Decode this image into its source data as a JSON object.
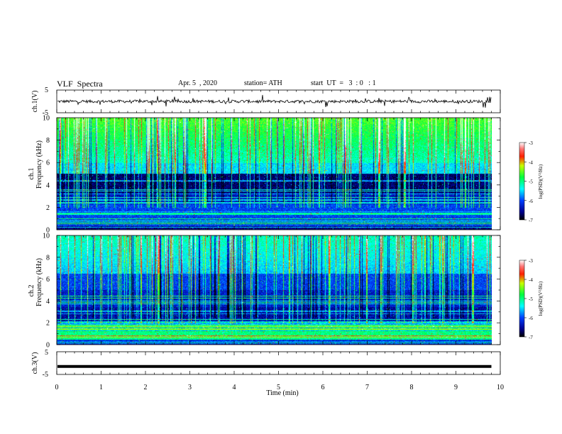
{
  "header": {
    "title": "VLF  Spectra",
    "date": "Apr. 5  , 2020",
    "station": "station= ATH",
    "start": "start  UT  =   3  : 0   : 1"
  },
  "ch1_waveform": {
    "ylabel": "ch.1(V)",
    "yticks": [
      "5",
      "-5"
    ],
    "ylim": [
      -5,
      5
    ]
  },
  "spectrogram_ch1": {
    "ylabel_top": "ch.1",
    "ylabel": "Frequency (kHz)",
    "yticks": [
      "10",
      "8",
      "6",
      "4",
      "2",
      "0"
    ]
  },
  "spectrogram_ch2": {
    "ylabel_top": "ch.2",
    "ylabel": "Frequency (kHz)",
    "yticks": [
      "10",
      "8",
      "6",
      "4",
      "2",
      "0"
    ]
  },
  "ch3_waveform": {
    "ylabel": "ch.3(V)",
    "yticks": [
      "5",
      "-5"
    ],
    "ylim": [
      -5,
      5
    ]
  },
  "colorbar": {
    "label": "log(PSD)(V²/Hz)",
    "ticks": [
      "-3",
      "-4",
      "-5",
      "-6",
      "-7"
    ],
    "range": [
      -7,
      -3
    ]
  },
  "xaxis": {
    "label": "Time  (min)",
    "ticks": [
      "0",
      "1",
      "2",
      "3",
      "4",
      "5",
      "6",
      "7",
      "8",
      "9",
      "10"
    ]
  },
  "chart_data": {
    "type": "heatmap",
    "x_unit": "min",
    "xlim": [
      0,
      10
    ],
    "data_end_min": 9.8,
    "ylim_khz": [
      0,
      10
    ],
    "colorscale_log_psd": [
      -7,
      -3
    ],
    "ch3_level_v": -1.5
  }
}
